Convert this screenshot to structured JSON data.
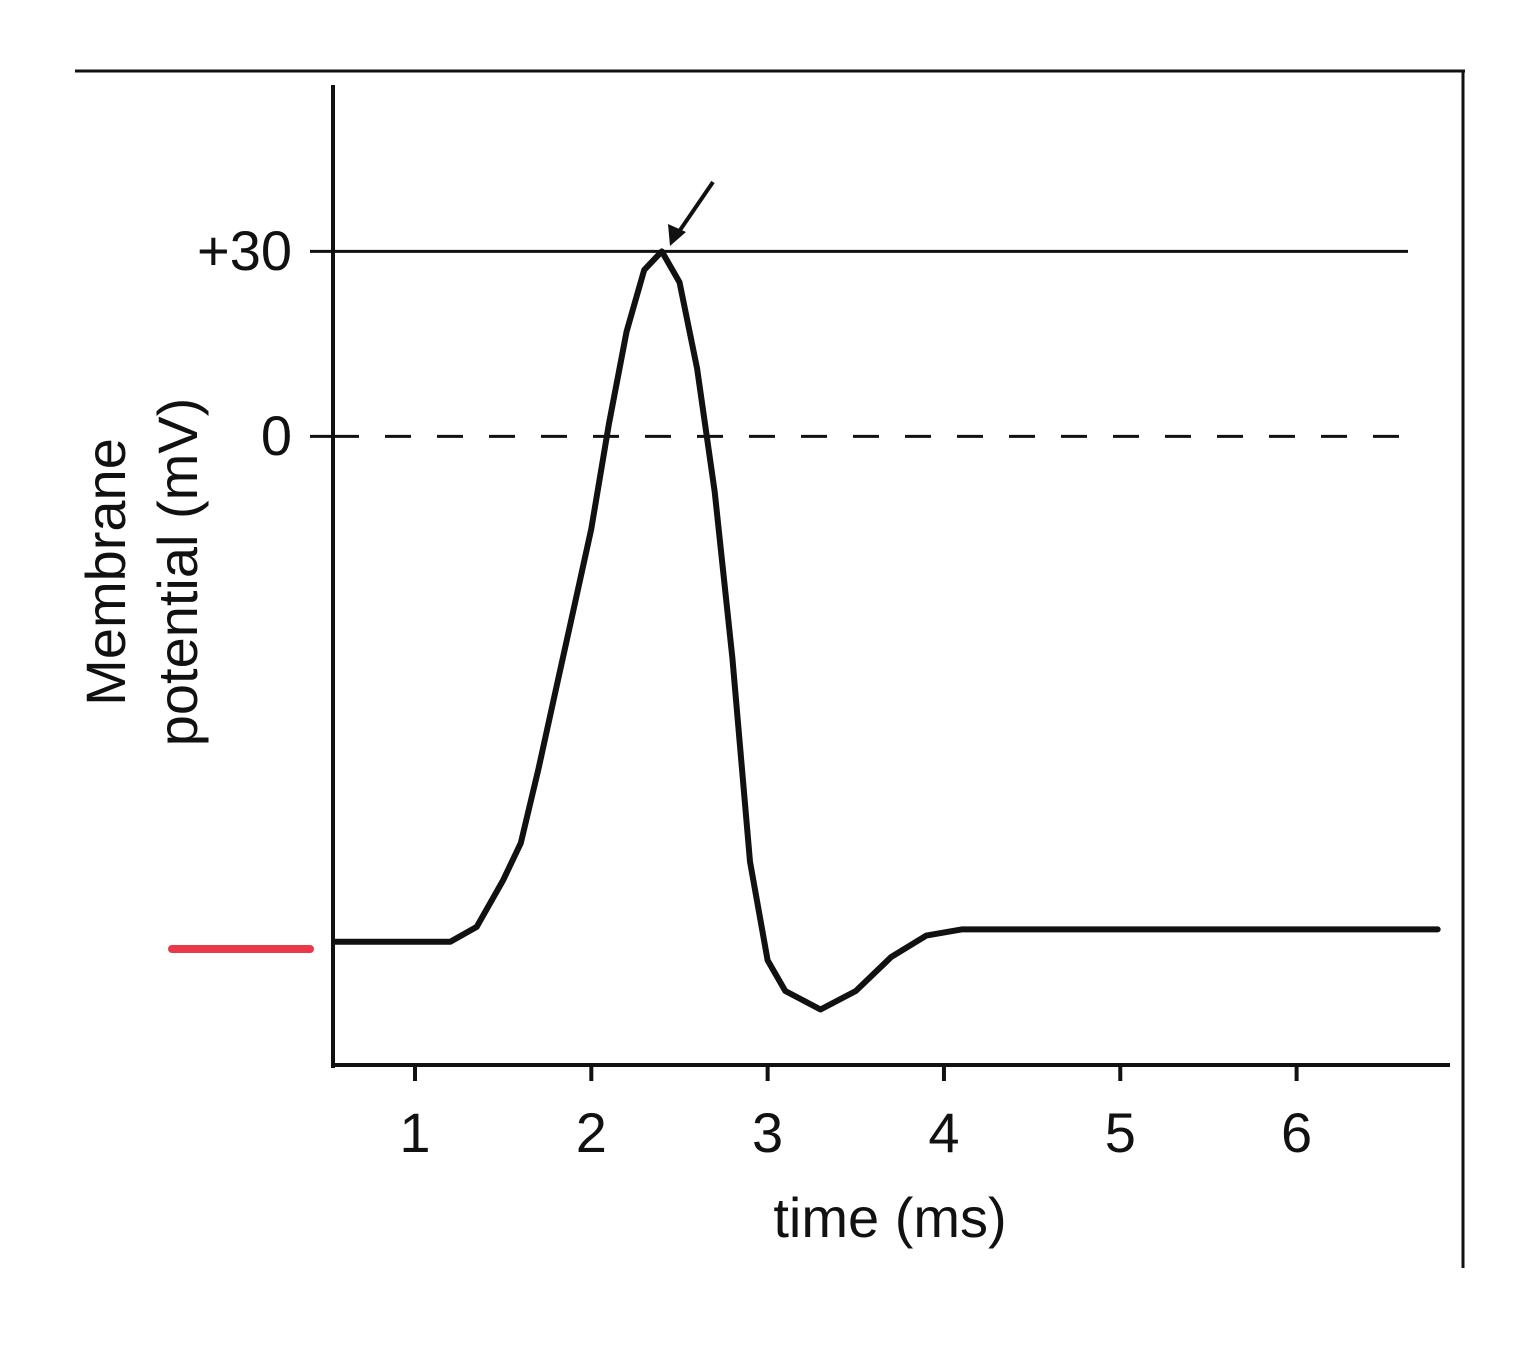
{
  "chart_data": {
    "type": "line",
    "xlabel": "time (ms)",
    "ylabel": [
      "Membrane",
      "potential (mV)"
    ],
    "x": [
      0.55,
      1.2,
      1.35,
      1.5,
      1.6,
      1.7,
      1.8,
      1.9,
      2.0,
      2.1,
      2.2,
      2.3,
      2.4,
      2.5,
      2.6,
      2.7,
      2.8,
      2.9,
      3.0,
      3.1,
      3.3,
      3.5,
      3.7,
      3.9,
      4.1,
      6.8
    ],
    "values": [
      -82,
      -82,
      -79.6,
      -72,
      -66,
      -54,
      -41,
      -28,
      -15,
      2,
      17,
      27,
      30,
      25,
      11,
      -9,
      -36,
      -69,
      -85,
      -90,
      -93,
      -90,
      -84.5,
      -81,
      -80,
      -80
    ],
    "color": "#111111",
    "xlim": [
      0.535,
      6.87
    ],
    "ylim": [
      -102,
      57
    ],
    "xticks": [
      1,
      2,
      3,
      4,
      5,
      6
    ],
    "yticks": [
      {
        "value": 30,
        "label": "+30"
      },
      0
    ],
    "grid": true
  }
}
